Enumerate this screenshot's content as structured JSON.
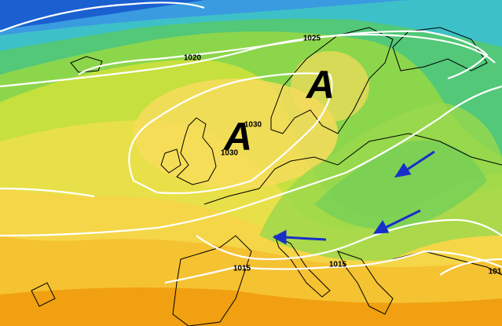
{
  "highs": [
    "A",
    "A"
  ],
  "isobar_labels": [
    "1025",
    "1020",
    "1030",
    "1030",
    "1015",
    "1015",
    "101"
  ]
}
